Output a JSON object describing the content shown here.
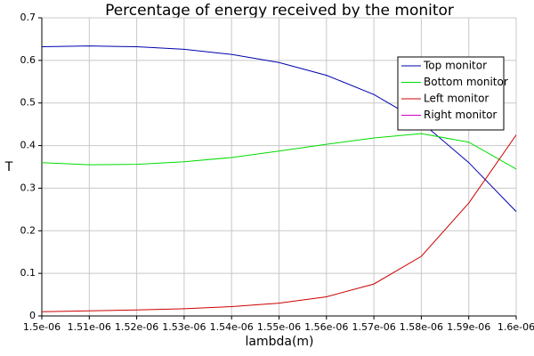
{
  "chart_data": {
    "type": "line",
    "title": "Percentage of energy received by the monitor",
    "x_label": "lambda(m)",
    "y_label": "T",
    "x": [
      1.5e-06,
      1.51e-06,
      1.52e-06,
      1.53e-06,
      1.54e-06,
      1.55e-06,
      1.56e-06,
      1.57e-06,
      1.58e-06,
      1.59e-06,
      1.6e-06
    ],
    "series": [
      {
        "name": "Top monitor",
        "color": "#0000b0",
        "values": [
          0.632,
          0.634,
          0.632,
          0.626,
          0.614,
          0.595,
          0.565,
          0.52,
          0.455,
          0.36,
          0.245
        ]
      },
      {
        "name": "Bottom monitor",
        "color": "#00dd00",
        "values": [
          0.36,
          0.355,
          0.356,
          0.362,
          0.372,
          0.387,
          0.403,
          0.418,
          0.428,
          0.408,
          0.345
        ]
      },
      {
        "name": "Left monitor",
        "color": "#cc0000",
        "values": [
          0.01,
          0.012,
          0.014,
          0.017,
          0.022,
          0.03,
          0.045,
          0.075,
          0.14,
          0.265,
          0.425
        ]
      },
      {
        "name": "Right monitor",
        "color": "#cc00cc",
        "values": [
          null,
          null,
          null,
          null,
          null,
          null,
          null,
          null,
          null,
          null,
          null
        ]
      }
    ],
    "xlim": [
      1.5e-06,
      1.6e-06
    ],
    "xticks": [
      {
        "value": 1.5e-06,
        "label": "1.5e-06"
      },
      {
        "value": 1.51e-06,
        "label": "1.51e-06"
      },
      {
        "value": 1.52e-06,
        "label": "1.52e-06"
      },
      {
        "value": 1.53e-06,
        "label": "1.53e-06"
      },
      {
        "value": 1.54e-06,
        "label": "1.54e-06"
      },
      {
        "value": 1.55e-06,
        "label": "1.55e-06"
      },
      {
        "value": 1.56e-06,
        "label": "1.56e-06"
      },
      {
        "value": 1.57e-06,
        "label": "1.57e-06"
      },
      {
        "value": 1.58e-06,
        "label": "1.58e-06"
      },
      {
        "value": 1.59e-06,
        "label": "1.59e-06"
      },
      {
        "value": 1.6e-06,
        "label": "1.6e-06"
      }
    ],
    "ylim": [
      0,
      0.7
    ],
    "yticks": [
      0,
      0.1,
      0.2,
      0.3,
      0.4,
      0.5,
      0.6,
      0.7
    ],
    "grid": true,
    "legend": "upper right"
  }
}
